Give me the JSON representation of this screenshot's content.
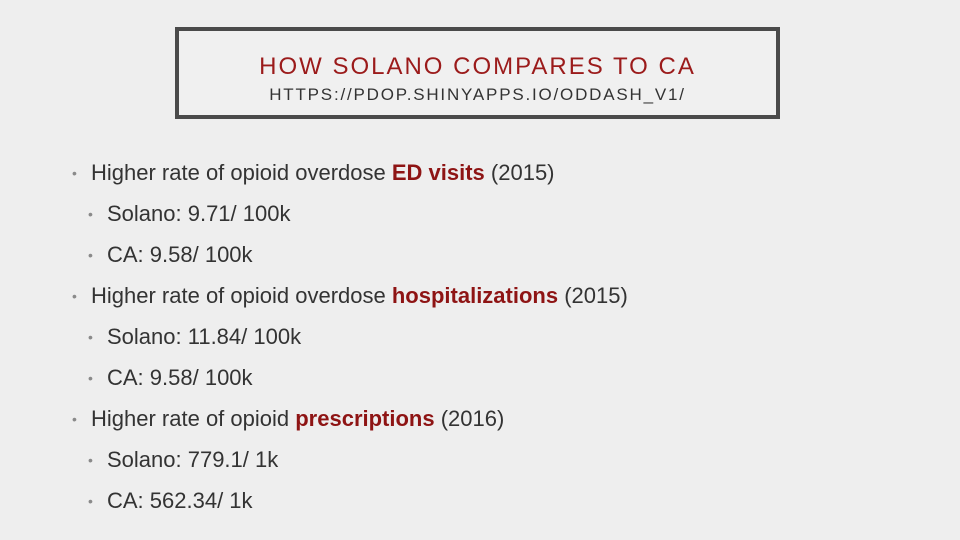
{
  "slide": {
    "title": "HOW SOLANO COMPARES TO CA",
    "subtitle": "HTTPS://PDOP.SHINYAPPS.IO/ODDASH_V1/",
    "bullet_glyph": "•",
    "items": [
      {
        "prefix": "Higher rate of opioid overdose ",
        "highlight": "ED visits",
        "suffix": " (2015)",
        "sub": [
          "Solano: 9.71/ 100k",
          "CA: 9.58/ 100k"
        ]
      },
      {
        "prefix": "Higher rate of opioid overdose ",
        "highlight": "hospitalizations",
        "suffix": " (2015)",
        "sub": [
          "Solano: 11.84/ 100k",
          "CA: 9.58/ 100k"
        ]
      },
      {
        "prefix": "Higher rate of opioid ",
        "highlight": "prescriptions",
        "suffix": " (2016)",
        "sub": [
          "Solano: 779.1/ 1k",
          "CA: 562.34/ 1k"
        ]
      }
    ]
  },
  "colors": {
    "highlight": "#8e1414",
    "title": "#9b1b1b",
    "text": "#333333",
    "border": "#4a4a4a",
    "background": "#eeeeee"
  }
}
